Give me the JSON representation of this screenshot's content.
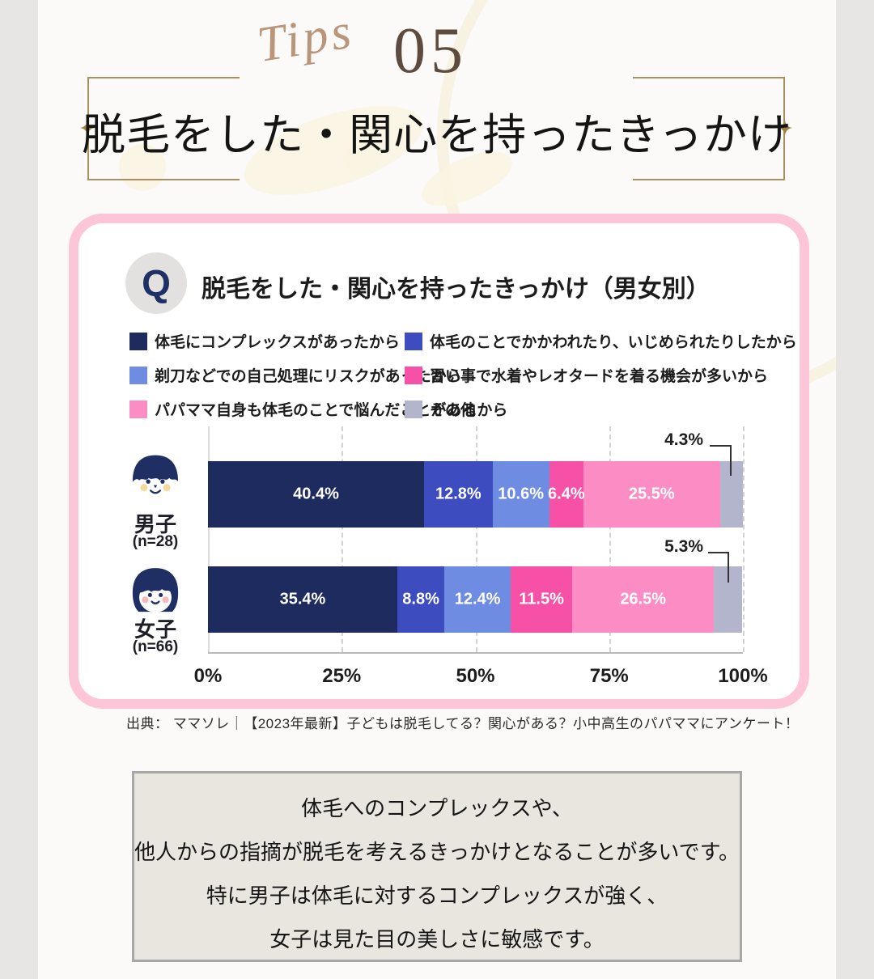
{
  "header": {
    "tips_label": "Tips",
    "tips_number": "05",
    "title": "脱毛をした・関心を持ったきっかけ"
  },
  "card": {
    "q_label": "Q",
    "chart_title": "脱毛をした・関心を持ったきっかけ（男女別）"
  },
  "chart_data": {
    "type": "bar",
    "stacked": true,
    "orientation": "horizontal",
    "title": "脱毛をした・関心を持ったきっかけ（男女別）",
    "xlim": [
      0,
      100
    ],
    "x_ticks": [
      "0%",
      "25%",
      "50%",
      "75%",
      "100%"
    ],
    "grid": "vertical-dashed",
    "value_suffix": "%",
    "legend": [
      {
        "label": "体毛にコンプレックスがあったから",
        "color": "#1d2b5f"
      },
      {
        "label": "体毛のことでかかわれたり、いじめられたりしたから",
        "color": "#3d4cbe"
      },
      {
        "label": "剃刀などでの自己処理にリスクがあったから",
        "color": "#6d8ce2"
      },
      {
        "label": "習い事で水着やレオタードを着る機会が多いから",
        "color": "#f750a7"
      },
      {
        "label": "パパママ自身も体毛のことで悩んだことがあるから",
        "color": "#fb8dc4"
      },
      {
        "label": "その他",
        "color": "#b2b5cb"
      }
    ],
    "categories": [
      {
        "name": "男子",
        "n_label": "(n=28)",
        "values": [
          40.4,
          12.8,
          10.6,
          6.4,
          25.5,
          4.3
        ]
      },
      {
        "name": "女子",
        "n_label": "(n=66)",
        "values": [
          35.4,
          8.8,
          12.4,
          11.5,
          26.5,
          5.3
        ]
      }
    ]
  },
  "source_line": "出典： ママソレ｜【2023年最新】子どもは脱毛してる？関心がある？小中高生のパパママにアンケート！",
  "summary": {
    "lines": [
      "体毛へのコンプレックスや、",
      "他人からの指摘が脱毛を考えるきっかけとなることが多いです。",
      "特に男子は体毛に対するコンプレックスが強く、",
      "女子は見た目の美しさに敏感です。"
    ]
  },
  "colors": {
    "card_border": "#fcc6d8",
    "frame_gold": "#a9905f",
    "tips_script": "#b9957a",
    "navy_accent": "#1e3065",
    "summary_bg": "#e9e5df"
  }
}
